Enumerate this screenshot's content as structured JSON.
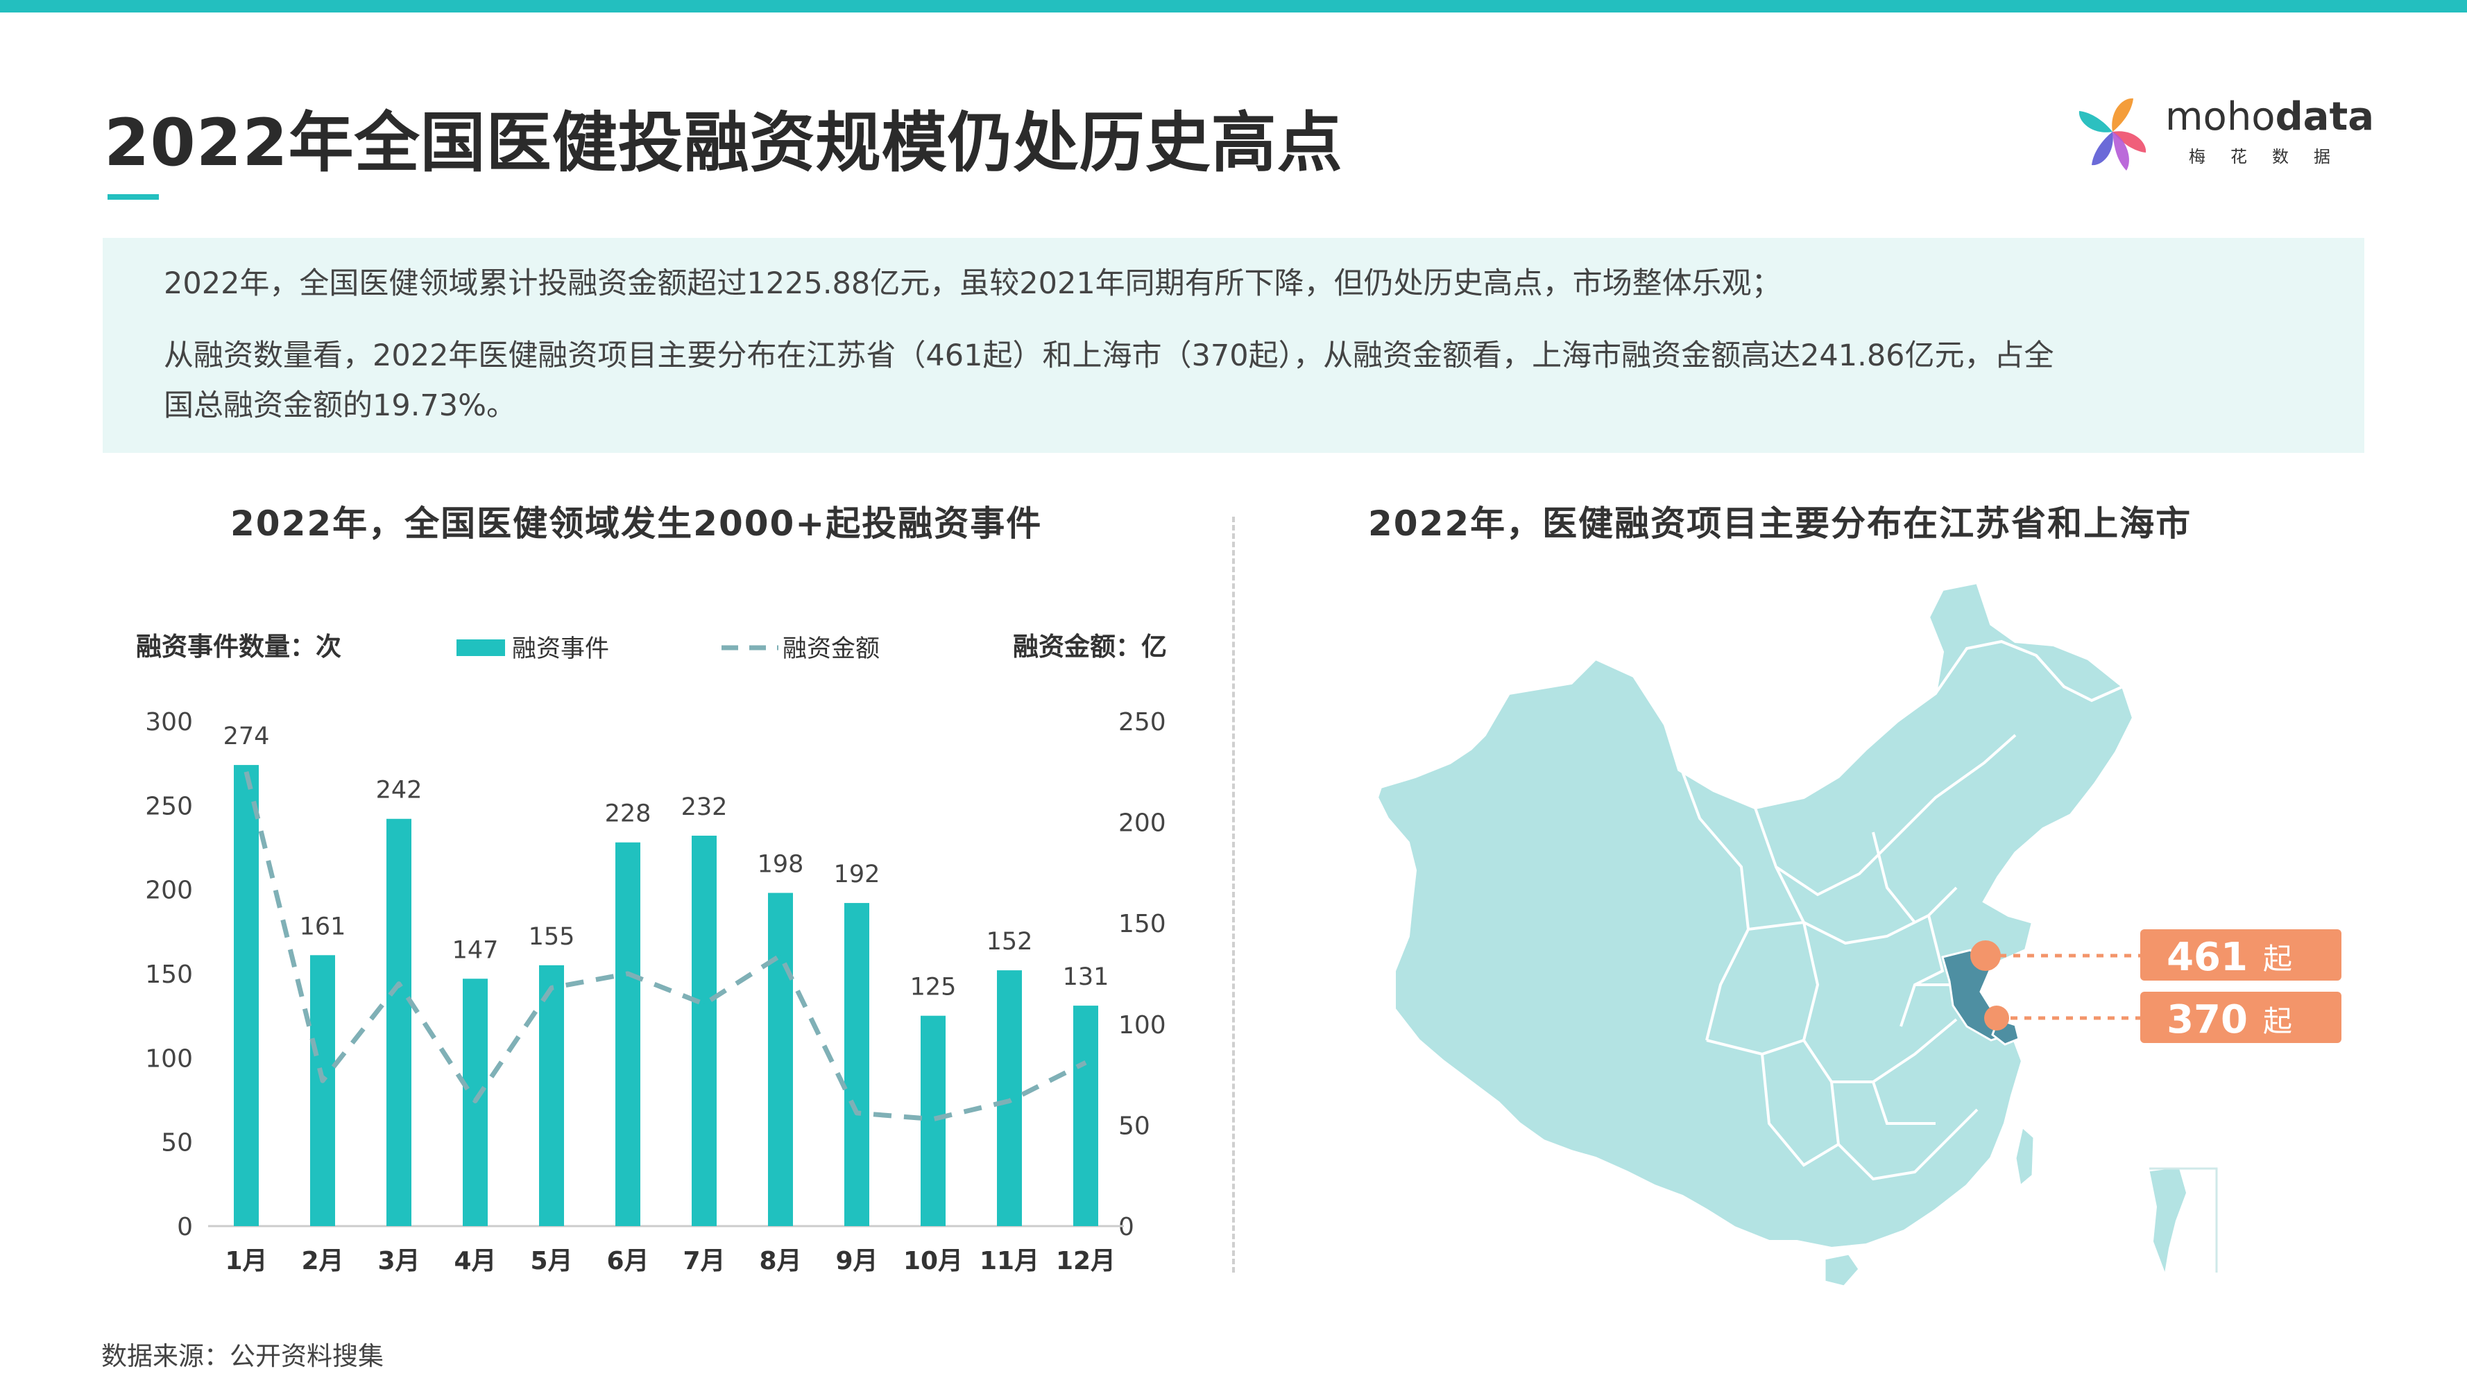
{
  "page": {
    "title": "2022年全国医健投融资规模仍处历史高点",
    "summary_lines": [
      "2022年，全国医健领域累计投融资金额超过1225.88亿元，虽较2021年同期有所下降，但仍处历史高点，市场整体乐观；",
      "从融资数量看，2022年医健融资项目主要分布在江苏省（461起）和上海市（370起），从融资金额看，上海市融资金额高达241.86亿元，占全",
      "国总融资金额的19.73%。"
    ],
    "source": "数据来源：公开资料搜集"
  },
  "logo": {
    "brand_a": "moho",
    "brand_b": "data",
    "sub": "梅花数据"
  },
  "colors": {
    "accent": "#23bfbf",
    "bar": "#20c1bf",
    "line": "#7fb0b6",
    "map_fill": "#b3e3e3",
    "map_highlight": "#4e8fa2",
    "callout": "#f3956a"
  },
  "map": {
    "title": "2022年，医健融资项目主要分布在江苏省和上海市",
    "callouts": [
      {
        "value": "461",
        "unit": "起"
      },
      {
        "value": "370",
        "unit": "起"
      }
    ]
  },
  "chart_data": {
    "type": "bar",
    "title": "2022年，全国医健领域发生2000+起投融资事件",
    "ylabel": "融资事件数量：次",
    "y2label": "融资金额：亿",
    "categories": [
      "1月",
      "2月",
      "3月",
      "4月",
      "5月",
      "6月",
      "7月",
      "8月",
      "9月",
      "10月",
      "11月",
      "12月"
    ],
    "series": [
      {
        "name": "融资事件",
        "type": "bar",
        "axis": "left",
        "values": [
          274,
          161,
          242,
          147,
          155,
          228,
          232,
          198,
          192,
          125,
          152,
          131
        ]
      },
      {
        "name": "融资金额",
        "type": "line",
        "style": "dashed",
        "axis": "right",
        "values": [
          225,
          72,
          120,
          62,
          118,
          125,
          110,
          134,
          56,
          53,
          62,
          81
        ]
      }
    ],
    "ylim": [
      0,
      300
    ],
    "yticks": [
      0,
      50,
      100,
      150,
      200,
      250,
      300
    ],
    "y2lim": [
      0,
      250
    ],
    "y2ticks": [
      0,
      50,
      100,
      150,
      200,
      250
    ],
    "grid": false,
    "legend": "top-center"
  }
}
